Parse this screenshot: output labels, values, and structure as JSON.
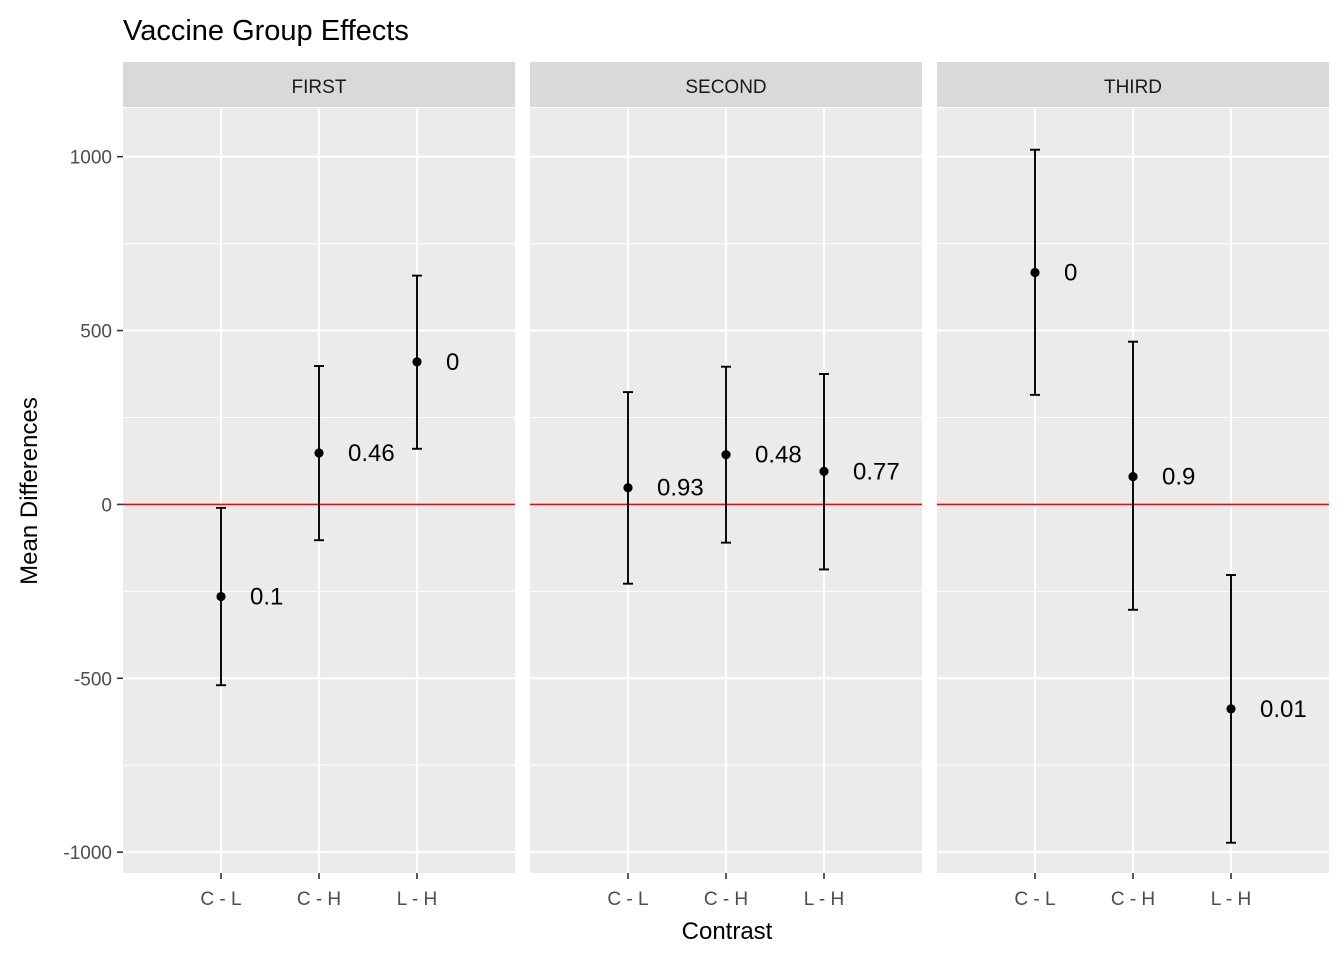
{
  "chart_data": {
    "type": "errorbar",
    "title": "Vaccine Group Effects",
    "xlabel": "Contrast",
    "ylabel": "Mean Differences",
    "ylim": [
      -1060,
      1140
    ],
    "y_ticks": [
      -1000,
      -500,
      0,
      500,
      1000
    ],
    "y_tick_labels": [
      "-1000",
      "-500",
      "0",
      "500",
      "1000"
    ],
    "categories": [
      "C - L",
      "C - H",
      "L - H"
    ],
    "reference_line": {
      "y": 0,
      "color": "#ff0000"
    },
    "grid": true,
    "panels": [
      {
        "name": "FIRST",
        "points": [
          {
            "x": "C - L",
            "y": -265,
            "lower": -520,
            "upper": -10,
            "label": "0.1"
          },
          {
            "x": "C - H",
            "y": 148,
            "lower": -103,
            "upper": 398,
            "label": "0.46"
          },
          {
            "x": "L - H",
            "y": 410,
            "lower": 160,
            "upper": 658,
            "label": "0"
          }
        ]
      },
      {
        "name": "SECOND",
        "points": [
          {
            "x": "C - L",
            "y": 48,
            "lower": -228,
            "upper": 323,
            "label": "0.93"
          },
          {
            "x": "C - H",
            "y": 143,
            "lower": -110,
            "upper": 396,
            "label": "0.48"
          },
          {
            "x": "L - H",
            "y": 95,
            "lower": -187,
            "upper": 375,
            "label": "0.77"
          }
        ]
      },
      {
        "name": "THIRD",
        "points": [
          {
            "x": "C - L",
            "y": 667,
            "lower": 315,
            "upper": 1020,
            "label": "0"
          },
          {
            "x": "C - H",
            "y": 80,
            "lower": -303,
            "upper": 468,
            "label": "0.9"
          },
          {
            "x": "L - H",
            "y": -588,
            "lower": -973,
            "upper": -203,
            "label": "0.01"
          }
        ]
      }
    ]
  }
}
